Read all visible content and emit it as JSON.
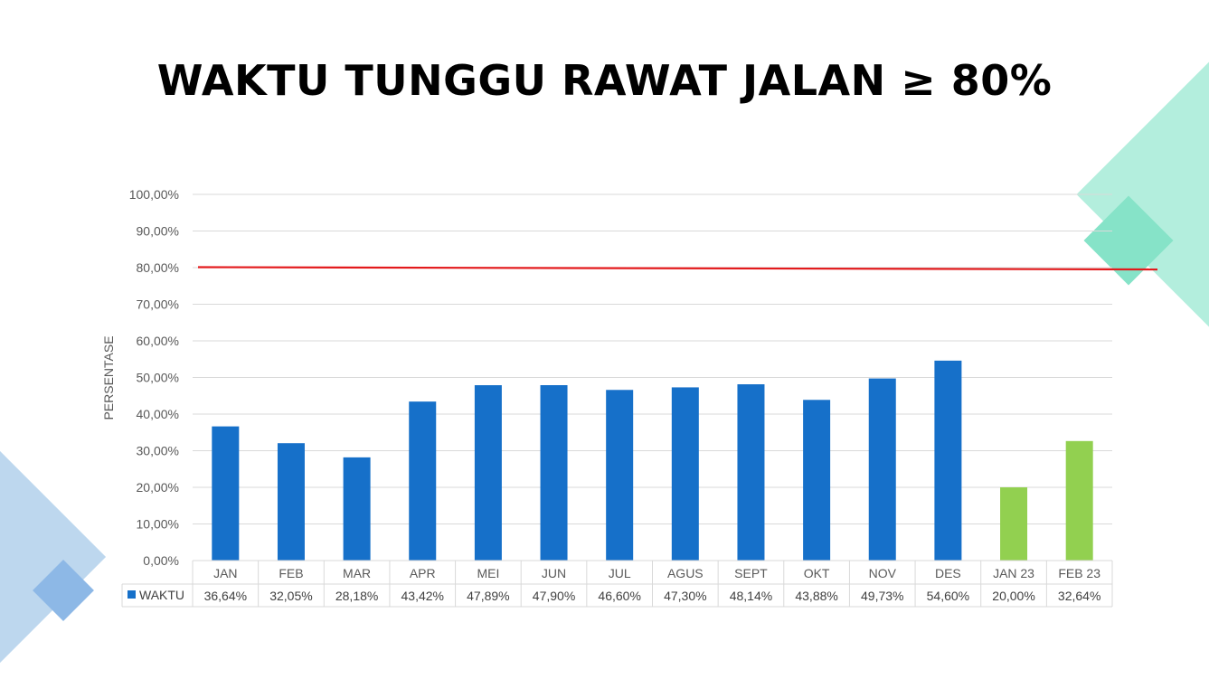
{
  "title": "WAKTU TUNGGU RAWAT JALAN ≥  80%",
  "colors": {
    "bar_primary": "#1670c9",
    "bar_secondary": "#92d050",
    "target_line": "#e31a1c",
    "gridline": "#d9d9d9",
    "deco_blue": "#9dc3e6",
    "deco_green": "#9fe8d0"
  },
  "chart_data": {
    "type": "bar",
    "title": "",
    "ylabel": "PERSENTASE",
    "xlabel": "",
    "ylim": [
      0,
      100
    ],
    "y_ticks": [
      "0,00%",
      "10,00%",
      "20,00%",
      "30,00%",
      "40,00%",
      "50,00%",
      "60,00%",
      "70,00%",
      "80,00%",
      "90,00%",
      "100,00%"
    ],
    "categories": [
      "JAN",
      "FEB",
      "MAR",
      "APR",
      "MEI",
      "JUN",
      "JUL",
      "AGUS",
      "SEPT",
      "OKT",
      "NOV",
      "DES",
      "JAN 23",
      "FEB 23"
    ],
    "series": [
      {
        "name": "WAKTU",
        "values": [
          36.64,
          32.05,
          28.18,
          43.42,
          47.89,
          47.9,
          46.6,
          47.3,
          48.14,
          43.88,
          49.73,
          54.6,
          20.0,
          32.64
        ],
        "value_labels": [
          "36,64%",
          "32,05%",
          "28,18%",
          "43,42%",
          "47,89%",
          "47,90%",
          "46,60%",
          "47,30%",
          "48,14%",
          "43,88%",
          "49,73%",
          "54,60%",
          "20,00%",
          "32,64%"
        ],
        "bar_colors": [
          "#1670c9",
          "#1670c9",
          "#1670c9",
          "#1670c9",
          "#1670c9",
          "#1670c9",
          "#1670c9",
          "#1670c9",
          "#1670c9",
          "#1670c9",
          "#1670c9",
          "#1670c9",
          "#92d050",
          "#92d050"
        ]
      }
    ],
    "target_value": 80,
    "grid": true,
    "legend": "data-table-left"
  }
}
